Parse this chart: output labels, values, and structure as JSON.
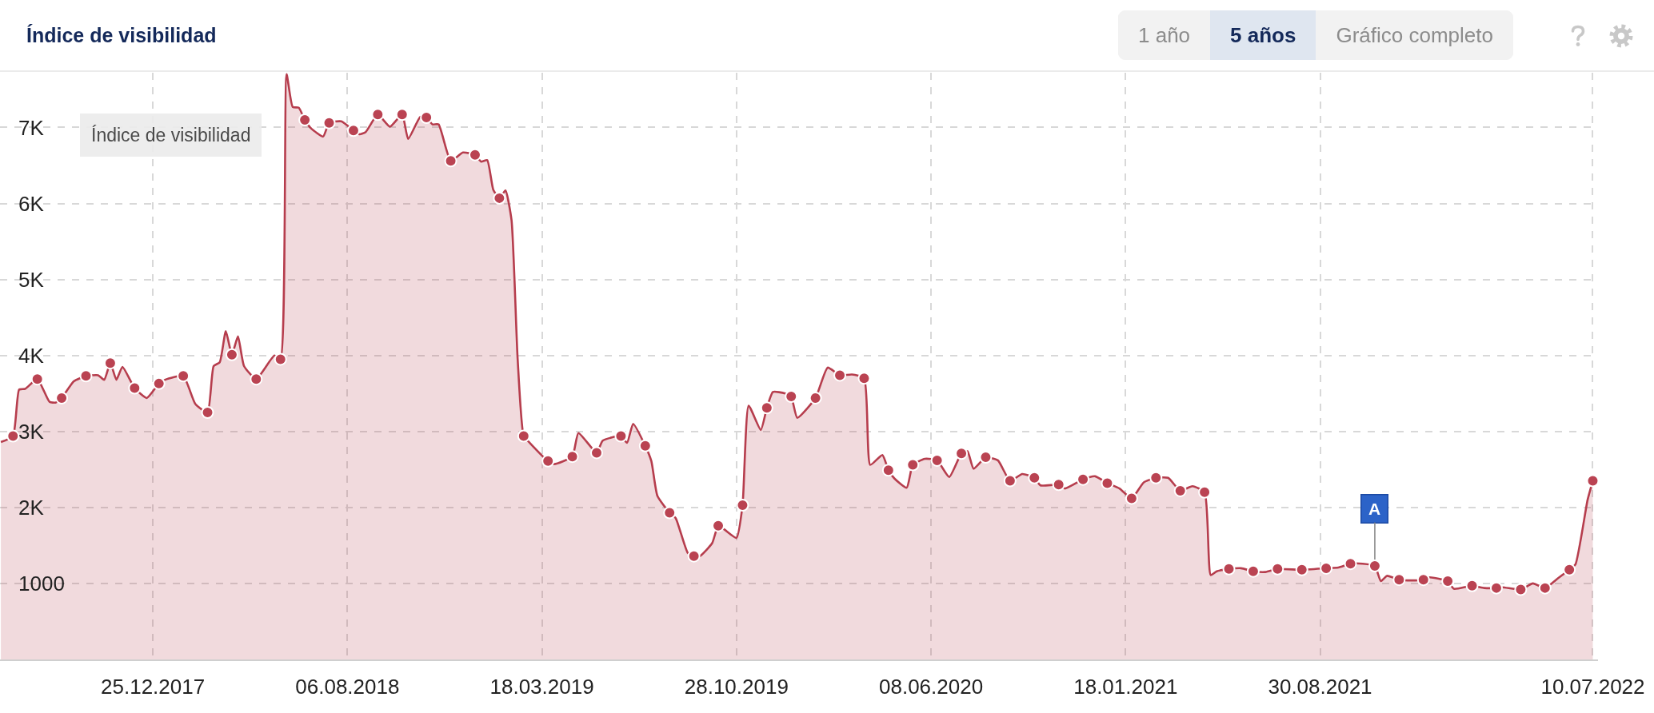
{
  "chart_data": {
    "type": "area",
    "title": "Índice de visibilidad",
    "annotations": [
      "1 año",
      "5 años",
      "Gráfico completo",
      "Índice de visibilidad",
      {
        "text": "A",
        "x": "2021-11-01",
        "y": 1230
      }
    ],
    "xlim": [
      "2017-07-02",
      "2022-07-16"
    ],
    "xticks": [
      {
        "value": "2017-12-25",
        "label": "25.12.2017"
      },
      {
        "value": "2018-08-06",
        "label": "06.08.2018"
      },
      {
        "value": "2019-03-18",
        "label": "18.03.2019"
      },
      {
        "value": "2019-10-28",
        "label": "28.10.2019"
      },
      {
        "value": "2020-06-08",
        "label": "08.06.2020"
      },
      {
        "value": "2021-01-18",
        "label": "18.01.2021"
      },
      {
        "value": "2021-08-30",
        "label": "30.08.2021"
      },
      {
        "value": "2022-07-10",
        "label": "10.07.2022"
      }
    ],
    "ylim": [
      0,
      7720
    ],
    "yticks": [
      1000,
      {
        "value": 2000,
        "label": "2K"
      },
      {
        "value": 3000,
        "label": "3K"
      },
      {
        "value": 4000,
        "label": "4K"
      },
      {
        "value": 5000,
        "label": "5K"
      },
      {
        "value": 6000,
        "label": "6K"
      },
      {
        "value": 7000,
        "label": "7K"
      }
    ],
    "grid": true,
    "line_style": "solid",
    "series": [
      {
        "color": "#b63d4d",
        "x": [
          "2017-07-03",
          "2017-07-17",
          "2017-07-24",
          "2017-07-31",
          "2017-08-14",
          "2017-08-28",
          "2017-09-04",
          "2017-09-11",
          "2017-09-25",
          "2017-10-09",
          "2017-10-23",
          "2017-10-30",
          "2017-11-06",
          "2017-11-13",
          "2017-11-20",
          "2017-12-04",
          "2017-12-18",
          "2018-01-01",
          "2018-01-08",
          "2018-01-29",
          "2018-02-12",
          "2018-02-26",
          "2018-03-05",
          "2018-03-12",
          "2018-03-19",
          "2018-03-26",
          "2018-04-02",
          "2018-04-09",
          "2018-04-23",
          "2018-05-14",
          "2018-05-21",
          "2018-05-28",
          "2018-06-04",
          "2018-06-11",
          "2018-06-18",
          "2018-06-25",
          "2018-07-09",
          "2018-07-16",
          "2018-07-30",
          "2018-08-13",
          "2018-08-20",
          "2018-08-27",
          "2018-09-10",
          "2018-09-24",
          "2018-10-08",
          "2018-10-15",
          "2018-10-29",
          "2018-11-05",
          "2018-11-12",
          "2018-11-19",
          "2018-12-03",
          "2018-12-17",
          "2018-12-31",
          "2019-01-07",
          "2019-01-14",
          "2019-01-21",
          "2019-01-28",
          "2019-02-04",
          "2019-02-11",
          "2019-02-18",
          "2019-02-25",
          "2019-03-04",
          "2019-03-25",
          "2019-04-01",
          "2019-04-22",
          "2019-04-29",
          "2019-05-20",
          "2019-05-27",
          "2019-06-17",
          "2019-06-24",
          "2019-07-01",
          "2019-07-15",
          "2019-07-22",
          "2019-07-29",
          "2019-08-12",
          "2019-08-19",
          "2019-09-02",
          "2019-09-09",
          "2019-09-16",
          "2019-09-30",
          "2019-10-07",
          "2019-10-14",
          "2019-10-28",
          "2019-11-04",
          "2019-11-11",
          "2019-11-25",
          "2019-12-02",
          "2019-12-09",
          "2019-12-23",
          "2019-12-30",
          "2020-01-06",
          "2020-01-27",
          "2020-02-10",
          "2020-02-24",
          "2020-03-09",
          "2020-03-23",
          "2020-03-30",
          "2020-04-13",
          "2020-04-20",
          "2020-04-27",
          "2020-05-11",
          "2020-05-18",
          "2020-06-01",
          "2020-06-15",
          "2020-06-29",
          "2020-07-13",
          "2020-07-20",
          "2020-07-27",
          "2020-08-10",
          "2020-08-24",
          "2020-09-07",
          "2020-09-21",
          "2020-10-05",
          "2020-10-12",
          "2020-11-02",
          "2020-11-09",
          "2020-11-30",
          "2020-12-14",
          "2020-12-28",
          "2021-01-11",
          "2021-01-25",
          "2021-02-08",
          "2021-02-22",
          "2021-03-08",
          "2021-03-22",
          "2021-04-05",
          "2021-04-19",
          "2021-04-26",
          "2021-05-03",
          "2021-05-17",
          "2021-05-31",
          "2021-06-14",
          "2021-06-28",
          "2021-07-12",
          "2021-08-09",
          "2021-09-06",
          "2021-09-20",
          "2021-10-04",
          "2021-10-18",
          "2021-11-01",
          "2021-11-08",
          "2021-11-15",
          "2021-11-29",
          "2021-12-13",
          "2021-12-27",
          "2022-01-03",
          "2022-01-24",
          "2022-01-31",
          "2022-02-21",
          "2022-03-07",
          "2022-03-21",
          "2022-03-28",
          "2022-04-18",
          "2022-05-02",
          "2022-05-16",
          "2022-05-30",
          "2022-06-13",
          "2022-06-20",
          "2022-07-04",
          "2022-07-10"
        ],
        "values": [
          2860,
          2940,
          3550,
          3560,
          3690,
          3390,
          3380,
          3440,
          3660,
          3730,
          3740,
          3680,
          3900,
          3680,
          3850,
          3570,
          3440,
          3630,
          3680,
          3730,
          3360,
          3250,
          3860,
          3910,
          4320,
          4010,
          4250,
          3860,
          3690,
          4000,
          3950,
          7700,
          7270,
          7260,
          7100,
          6990,
          6880,
          7060,
          7080,
          6960,
          6910,
          6940,
          7170,
          7010,
          7170,
          6850,
          7140,
          7130,
          7040,
          7040,
          6560,
          6670,
          6640,
          6550,
          6570,
          6180,
          6070,
          6170,
          5780,
          3960,
          2940,
          2850,
          2610,
          2570,
          2670,
          2980,
          2720,
          2880,
          2940,
          2850,
          3100,
          2810,
          2610,
          2150,
          1930,
          1860,
          1400,
          1360,
          1360,
          1530,
          1760,
          1710,
          1600,
          2030,
          3340,
          3020,
          3310,
          3520,
          3500,
          3460,
          3180,
          3440,
          3840,
          3740,
          3750,
          3700,
          2560,
          2690,
          2490,
          2380,
          2260,
          2560,
          2640,
          2620,
          2400,
          2710,
          2740,
          2510,
          2660,
          2620,
          2350,
          2440,
          2390,
          2290,
          2300,
          2250,
          2370,
          2410,
          2320,
          2250,
          2120,
          2330,
          2390,
          2390,
          2220,
          2280,
          2200,
          1110,
          1160,
          1190,
          1200,
          1160,
          1150,
          1190,
          1180,
          1200,
          1210,
          1260,
          1260,
          1230,
          1030,
          1100,
          1050,
          1040,
          1050,
          1080,
          1030,
          930,
          970,
          940,
          940,
          950,
          920,
          1000,
          940,
          1060,
          1180,
          1250,
          2100,
          2350
        ]
      },
      {
        "type": "scatter",
        "color": "#ba4352",
        "marker": "circle",
        "x": [
          "2017-07-17",
          "2017-08-14",
          "2017-09-11",
          "2017-10-09",
          "2017-11-06",
          "2017-12-04",
          "2018-01-01",
          "2018-01-29",
          "2018-02-26",
          "2018-03-26",
          "2018-04-23",
          "2018-05-21",
          "2018-06-18",
          "2018-07-16",
          "2018-08-13",
          "2018-09-10",
          "2018-10-08",
          "2018-11-05",
          "2018-12-03",
          "2018-12-31",
          "2019-01-28",
          "2019-02-25",
          "2019-03-25",
          "2019-04-22",
          "2019-05-20",
          "2019-06-17",
          "2019-07-15",
          "2019-08-12",
          "2019-09-09",
          "2019-10-07",
          "2019-11-04",
          "2019-12-02",
          "2019-12-30",
          "2020-01-27",
          "2020-02-24",
          "2020-03-23",
          "2020-04-20",
          "2020-05-18",
          "2020-06-15",
          "2020-07-13",
          "2020-08-10",
          "2020-09-07",
          "2020-10-05",
          "2020-11-02",
          "2020-11-30",
          "2020-12-28",
          "2021-01-25",
          "2021-02-22",
          "2021-03-22",
          "2021-04-19",
          "2021-05-17",
          "2021-06-14",
          "2021-07-12",
          "2021-08-09",
          "2021-09-06",
          "2021-10-04",
          "2021-11-01",
          "2021-11-29",
          "2021-12-27",
          "2022-01-24",
          "2022-02-21",
          "2022-03-21",
          "2022-04-18",
          "2022-05-16",
          "2022-06-13",
          "2022-07-10"
        ],
        "values": [
          2940,
          3690,
          3440,
          3730,
          3900,
          3570,
          3630,
          3730,
          3250,
          4010,
          3690,
          3950,
          7100,
          7060,
          6960,
          7170,
          7170,
          7130,
          6560,
          6640,
          6070,
          2940,
          2610,
          2670,
          2720,
          2940,
          2810,
          1930,
          1360,
          1760,
          2030,
          3310,
          3460,
          3440,
          3740,
          3700,
          2490,
          2560,
          2620,
          2710,
          2660,
          2350,
          2390,
          2300,
          2370,
          2320,
          2120,
          2390,
          2220,
          2200,
          1190,
          1160,
          1190,
          1180,
          1200,
          1260,
          1230,
          1050,
          1050,
          1030,
          970,
          940,
          920,
          940,
          1180,
          2350
        ]
      }
    ]
  }
}
